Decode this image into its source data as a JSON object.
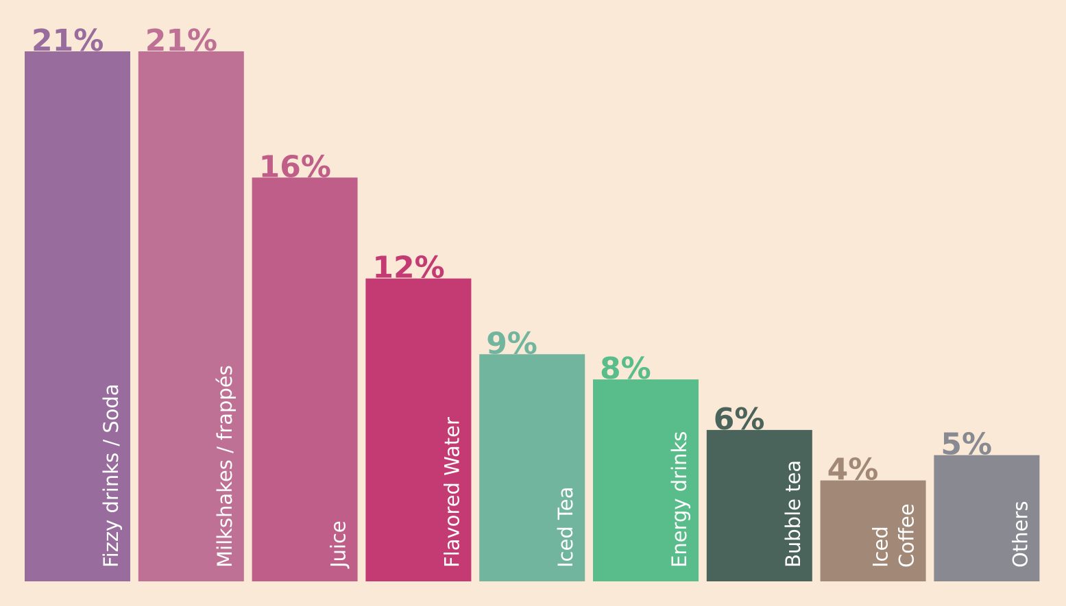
{
  "chart_data": {
    "type": "bar",
    "title": "",
    "xlabel": "",
    "ylabel": "",
    "ylim": [
      0,
      21
    ],
    "grid": false,
    "legend": "none",
    "categories": [
      [
        "Fizzy drinks / Soda"
      ],
      [
        "Milkshakes / frappés"
      ],
      [
        "Juice"
      ],
      [
        "Flavored Water"
      ],
      [
        "Iced Tea"
      ],
      [
        "Energy drinks"
      ],
      [
        "Bubble tea"
      ],
      [
        "Iced",
        "Coffee"
      ],
      [
        "Others"
      ]
    ],
    "values": [
      21,
      21,
      16,
      12,
      9,
      8,
      6,
      4,
      5
    ],
    "value_labels": [
      "21%",
      "21%",
      "16%",
      "12%",
      "9%",
      "8%",
      "6%",
      "4%",
      "5%"
    ],
    "colors": [
      "#986c9d",
      "#bf7095",
      "#bf5f89",
      "#c43a73",
      "#71b59e",
      "#58bd8a",
      "#4a645c",
      "#a18877",
      "#898a91"
    ]
  }
}
